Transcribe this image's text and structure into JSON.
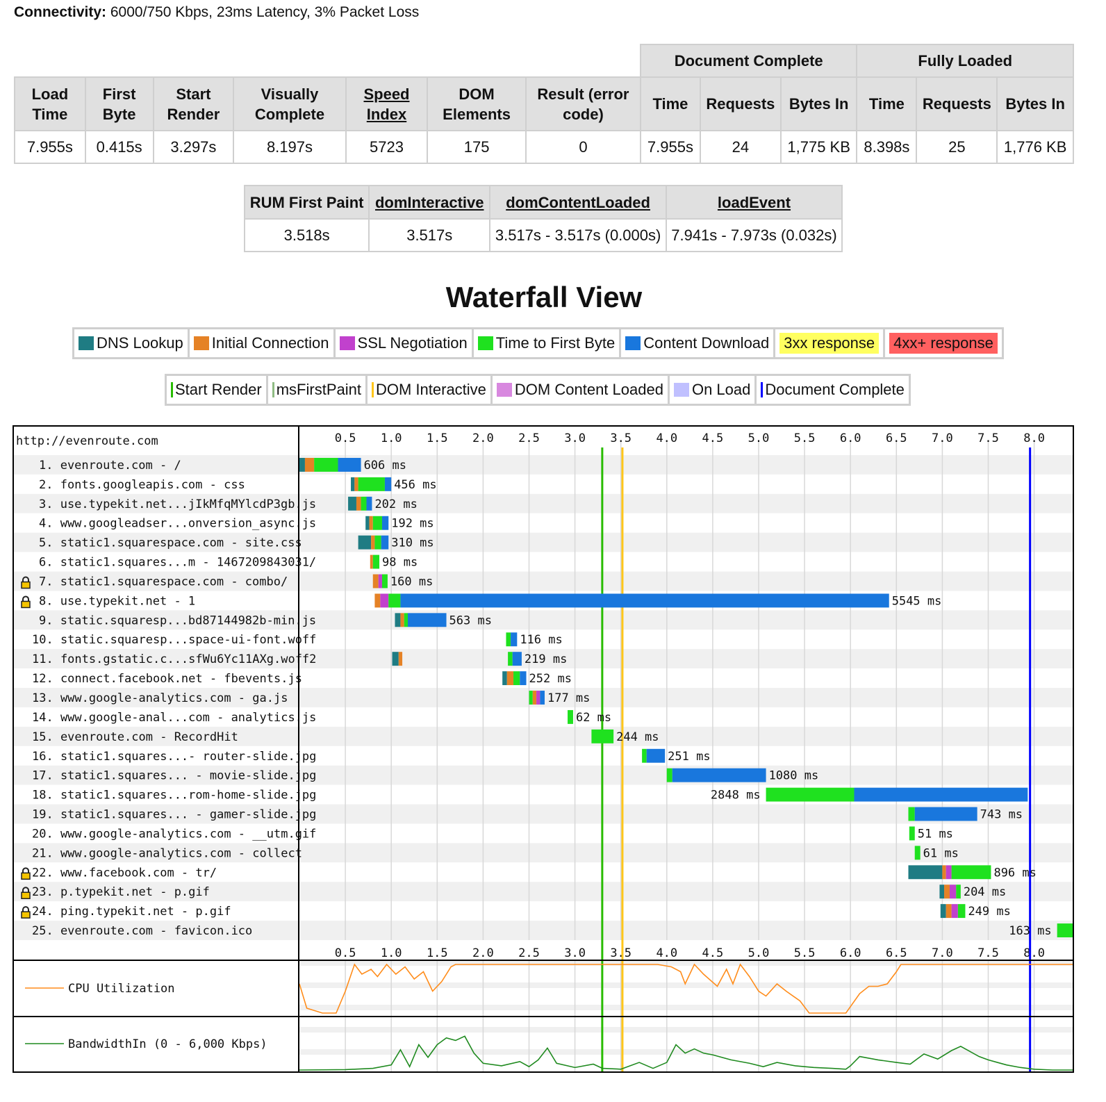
{
  "connectivity": {
    "label": "Connectivity:",
    "value": "6000/750 Kbps, 23ms Latency, 3% Packet Loss"
  },
  "results": {
    "groups": {
      "doc": "Document Complete",
      "full": "Fully Loaded"
    },
    "headers": {
      "load": "Load Time",
      "first_byte": "First Byte",
      "start_render": "Start Render",
      "visually_complete": "Visually Complete",
      "speed_index": "Speed Index",
      "dom_elements": "DOM Elements",
      "result": "Result (error code)",
      "time": "Time",
      "requests": "Requests",
      "bytes_in": "Bytes In"
    },
    "values": {
      "load": "7.955s",
      "first_byte": "0.415s",
      "start_render": "3.297s",
      "visually_complete": "8.197s",
      "speed_index": "5723",
      "dom_elements": "175",
      "result": "0",
      "doc_time": "7.955s",
      "doc_requests": "24",
      "doc_bytes": "1,775 KB",
      "full_time": "8.398s",
      "full_requests": "25",
      "full_bytes": "1,776 KB"
    }
  },
  "rum": {
    "headers": {
      "first_paint": "RUM First Paint",
      "dom_interactive": "domInteractive",
      "dom_content_loaded": "domContentLoaded",
      "load_event": "loadEvent"
    },
    "values": {
      "first_paint": "3.518s",
      "dom_interactive": "3.517s",
      "dom_content_loaded": "3.517s - 3.517s (0.000s)",
      "load_event": "7.941s - 7.973s (0.032s)"
    }
  },
  "waterfall_title": "Waterfall View",
  "legend": {
    "phases": [
      {
        "label": "DNS Lookup",
        "color": "#1f7c83"
      },
      {
        "label": "Initial Connection",
        "color": "#e58226"
      },
      {
        "label": "SSL Negotiation",
        "color": "#c141cd"
      },
      {
        "label": "Time to First Byte",
        "color": "#1fe11f"
      },
      {
        "label": "Content Download",
        "color": "#1977dd"
      }
    ],
    "responses": [
      {
        "label": "3xx response",
        "color": "#ffff60"
      },
      {
        "label": "4xx+ response",
        "color": "#ff6060"
      }
    ],
    "markers": [
      {
        "label": "Start Render",
        "color": "#28bc00",
        "kind": "line"
      },
      {
        "label": "msFirstPaint",
        "color": "#8fbc83",
        "kind": "line"
      },
      {
        "label": "DOM Interactive",
        "color": "#ffc61a",
        "kind": "line"
      },
      {
        "label": "DOM Content Loaded",
        "color": "#d888df",
        "kind": "box"
      },
      {
        "label": "On Load",
        "color": "#c0c0ff",
        "kind": "box"
      },
      {
        "label": "Document Complete",
        "color": "#0000ff",
        "kind": "line"
      }
    ]
  },
  "chart_data": {
    "type": "waterfall",
    "site": "http://evenroute.com",
    "xlim": [
      0,
      8.45
    ],
    "ticks": [
      0.5,
      1.0,
      1.5,
      2.0,
      2.5,
      3.0,
      3.5,
      4.0,
      4.5,
      5.0,
      5.5,
      6.0,
      6.5,
      7.0,
      7.5,
      8.0
    ],
    "markers": {
      "start_render": 3.297,
      "dom_interactive": 3.517,
      "document_complete": 7.955
    },
    "requests": [
      {
        "label": "1. evenroute.com - /",
        "secure": false,
        "ms": "606 ms",
        "segs": [
          [
            0,
            0.06,
            "dns"
          ],
          [
            0.06,
            0.16,
            "conn"
          ],
          [
            0.16,
            0.42,
            "ttfb"
          ],
          [
            0.42,
            0.67,
            "dl"
          ]
        ]
      },
      {
        "label": "2. fonts.googleapis.com - css",
        "secure": false,
        "ms": "456 ms",
        "segs": [
          [
            0.56,
            0.6,
            "dns"
          ],
          [
            0.6,
            0.64,
            "conn"
          ],
          [
            0.64,
            0.93,
            "ttfb"
          ],
          [
            0.93,
            1.0,
            "dl"
          ]
        ]
      },
      {
        "label": "3. use.typekit.net...jIkMfqMYlcdP3gb.js",
        "secure": false,
        "ms": "202 ms",
        "segs": [
          [
            0.53,
            0.62,
            "dns"
          ],
          [
            0.62,
            0.67,
            "conn"
          ],
          [
            0.67,
            0.73,
            "ttfb"
          ],
          [
            0.73,
            0.79,
            "dl"
          ]
        ]
      },
      {
        "label": "4. www.googleadser...onversion_async.js",
        "secure": false,
        "ms": "192 ms",
        "segs": [
          [
            0.72,
            0.76,
            "dns"
          ],
          [
            0.76,
            0.8,
            "conn"
          ],
          [
            0.8,
            0.9,
            "ttfb"
          ],
          [
            0.9,
            0.97,
            "dl"
          ]
        ]
      },
      {
        "label": "5. static1.squarespace.com - site.css",
        "secure": false,
        "ms": "310 ms",
        "segs": [
          [
            0.64,
            0.78,
            "dns"
          ],
          [
            0.78,
            0.82,
            "conn"
          ],
          [
            0.82,
            0.89,
            "ttfb"
          ],
          [
            0.89,
            0.97,
            "dl"
          ]
        ]
      },
      {
        "label": "6. static1.squares...m - 1467209843031/",
        "secure": false,
        "ms": "98 ms",
        "segs": [
          [
            0.77,
            0.8,
            "conn"
          ],
          [
            0.8,
            0.87,
            "ttfb"
          ]
        ]
      },
      {
        "label": "7. static1.squarespace.com - combo/",
        "secure": true,
        "ms": "160 ms",
        "segs": [
          [
            0.8,
            0.86,
            "conn"
          ],
          [
            0.86,
            0.9,
            "ssl"
          ],
          [
            0.9,
            0.96,
            "ttfb"
          ]
        ]
      },
      {
        "label": "8. use.typekit.net - 1",
        "secure": true,
        "ms": "5545 ms",
        "segs": [
          [
            0.82,
            0.88,
            "conn"
          ],
          [
            0.88,
            0.97,
            "ssl"
          ],
          [
            0.97,
            1.1,
            "ttfb"
          ],
          [
            1.1,
            6.42,
            "dl"
          ]
        ]
      },
      {
        "label": "9. static.squaresp...bd87144982b-min.js",
        "secure": false,
        "ms": "563 ms",
        "segs": [
          [
            1.04,
            1.1,
            "dns"
          ],
          [
            1.1,
            1.14,
            "conn"
          ],
          [
            1.14,
            1.18,
            "ttfb"
          ],
          [
            1.18,
            1.6,
            "dl"
          ]
        ]
      },
      {
        "label": "10. static.squaresp...space-ui-font.woff",
        "secure": false,
        "ms": "116 ms",
        "segs": [
          [
            2.25,
            2.3,
            "ttfb"
          ],
          [
            2.3,
            2.37,
            "dl"
          ]
        ]
      },
      {
        "label": "11. fonts.gstatic.c...sfWu6Yc11AXg.woff2",
        "secure": false,
        "ms": "219 ms",
        "segs": [
          [
            1.01,
            1.08,
            "dns"
          ],
          [
            1.08,
            1.12,
            "conn"
          ],
          [
            2.27,
            2.32,
            "ttfb"
          ],
          [
            2.32,
            2.42,
            "dl"
          ]
        ]
      },
      {
        "label": "12. connect.facebook.net - fbevents.js",
        "secure": false,
        "ms": "252 ms",
        "segs": [
          [
            2.21,
            2.26,
            "dns"
          ],
          [
            2.26,
            2.33,
            "conn"
          ],
          [
            2.33,
            2.4,
            "ttfb"
          ],
          [
            2.4,
            2.47,
            "dl"
          ]
        ]
      },
      {
        "label": "13. www.google-analytics.com - ga.js",
        "secure": false,
        "ms": "177 ms",
        "segs": [
          [
            2.5,
            2.54,
            "ttfb"
          ],
          [
            2.54,
            2.58,
            "conn"
          ],
          [
            2.58,
            2.62,
            "ssl"
          ],
          [
            2.62,
            2.67,
            "dl"
          ]
        ]
      },
      {
        "label": "14. www.google-anal...com - analytics.js",
        "secure": false,
        "ms": "62 ms",
        "segs": [
          [
            2.92,
            2.98,
            "ttfb"
          ]
        ]
      },
      {
        "label": "15. evenroute.com - RecordHit",
        "secure": false,
        "ms": "244 ms",
        "segs": [
          [
            3.18,
            3.42,
            "ttfb"
          ]
        ]
      },
      {
        "label": "16. static1.squares...- router-slide.jpg",
        "secure": false,
        "ms": "251 ms",
        "segs": [
          [
            3.73,
            3.78,
            "ttfb"
          ],
          [
            3.78,
            3.98,
            "dl"
          ]
        ]
      },
      {
        "label": "17. static1.squares... - movie-slide.jpg",
        "secure": false,
        "ms": "1080 ms",
        "segs": [
          [
            4.0,
            4.06,
            "ttfb"
          ],
          [
            4.06,
            5.08,
            "dl"
          ]
        ]
      },
      {
        "label": "18. static1.squares...rom-home-slide.jpg",
        "secure": false,
        "ms": "2848 ms",
        "segs": [
          [
            5.08,
            6.04,
            "ttfb"
          ],
          [
            6.04,
            7.93,
            "dl"
          ]
        ]
      },
      {
        "label": "19. static1.squares... - gamer-slide.jpg",
        "secure": false,
        "ms": "743 ms",
        "segs": [
          [
            6.63,
            6.7,
            "ttfb"
          ],
          [
            6.7,
            7.38,
            "dl"
          ]
        ]
      },
      {
        "label": "20. www.google-analytics.com - __utm.gif",
        "secure": false,
        "ms": "51 ms",
        "segs": [
          [
            6.64,
            6.7,
            "ttfb"
          ]
        ]
      },
      {
        "label": "21. www.google-analytics.com - collect",
        "secure": false,
        "ms": "61 ms",
        "segs": [
          [
            6.7,
            6.76,
            "ttfb"
          ]
        ]
      },
      {
        "label": "22. www.facebook.com - tr/",
        "secure": true,
        "ms": "896 ms",
        "segs": [
          [
            6.63,
            7.0,
            "dns"
          ],
          [
            7.0,
            7.04,
            "conn"
          ],
          [
            7.04,
            7.1,
            "ssl"
          ],
          [
            7.1,
            7.53,
            "ttfb"
          ]
        ]
      },
      {
        "label": "23. p.typekit.net - p.gif",
        "secure": true,
        "ms": "204 ms",
        "segs": [
          [
            6.97,
            7.02,
            "dns"
          ],
          [
            7.02,
            7.08,
            "conn"
          ],
          [
            7.08,
            7.15,
            "ssl"
          ],
          [
            7.15,
            7.2,
            "ttfb"
          ]
        ]
      },
      {
        "label": "24. ping.typekit.net - p.gif",
        "secure": true,
        "ms": "249 ms",
        "segs": [
          [
            6.98,
            7.04,
            "dns"
          ],
          [
            7.04,
            7.1,
            "conn"
          ],
          [
            7.1,
            7.17,
            "ssl"
          ],
          [
            7.17,
            7.25,
            "ttfb"
          ]
        ]
      },
      {
        "label": "25. evenroute.com - favicon.ico",
        "secure": false,
        "ms": "163 ms",
        "segs": [
          [
            8.25,
            8.45,
            "ttfb"
          ]
        ]
      }
    ],
    "cpu": {
      "label": "CPU Utilization",
      "unit": "percent",
      "points": [
        [
          0,
          60
        ],
        [
          0.08,
          10
        ],
        [
          0.25,
          0
        ],
        [
          0.4,
          0
        ],
        [
          0.5,
          45
        ],
        [
          0.6,
          100
        ],
        [
          0.68,
          80
        ],
        [
          0.78,
          90
        ],
        [
          0.85,
          75
        ],
        [
          0.95,
          100
        ],
        [
          1.05,
          80
        ],
        [
          1.15,
          95
        ],
        [
          1.25,
          70
        ],
        [
          1.35,
          85
        ],
        [
          1.45,
          45
        ],
        [
          1.55,
          65
        ],
        [
          1.65,
          95
        ],
        [
          1.7,
          100
        ],
        [
          3.9,
          100
        ],
        [
          4.05,
          95
        ],
        [
          4.15,
          85
        ],
        [
          4.2,
          60
        ],
        [
          4.3,
          100
        ],
        [
          4.4,
          80
        ],
        [
          4.55,
          55
        ],
        [
          4.65,
          90
        ],
        [
          4.72,
          60
        ],
        [
          4.8,
          100
        ],
        [
          4.9,
          75
        ],
        [
          5.0,
          45
        ],
        [
          5.08,
          35
        ],
        [
          5.2,
          60
        ],
        [
          5.3,
          45
        ],
        [
          5.45,
          25
        ],
        [
          5.55,
          0
        ],
        [
          5.95,
          0
        ],
        [
          6.1,
          40
        ],
        [
          6.2,
          55
        ],
        [
          6.3,
          55
        ],
        [
          6.4,
          60
        ],
        [
          6.5,
          85
        ],
        [
          6.55,
          100
        ],
        [
          8.45,
          100
        ]
      ]
    },
    "bandwidth": {
      "label": "BandwidthIn (0 - 6,000 Kbps)",
      "ylim": [
        0,
        6000
      ],
      "points": [
        [
          0,
          0
        ],
        [
          0.5,
          50
        ],
        [
          0.8,
          200
        ],
        [
          1.0,
          600
        ],
        [
          1.1,
          2400
        ],
        [
          1.2,
          400
        ],
        [
          1.3,
          3000
        ],
        [
          1.4,
          1500
        ],
        [
          1.5,
          3000
        ],
        [
          1.6,
          3800
        ],
        [
          1.7,
          3500
        ],
        [
          1.8,
          4000
        ],
        [
          1.9,
          2000
        ],
        [
          2.0,
          800
        ],
        [
          2.2,
          500
        ],
        [
          2.4,
          1000
        ],
        [
          2.5,
          400
        ],
        [
          2.6,
          1200
        ],
        [
          2.7,
          2600
        ],
        [
          2.8,
          800
        ],
        [
          3.0,
          300
        ],
        [
          3.2,
          700
        ],
        [
          3.3,
          200
        ],
        [
          3.5,
          100
        ],
        [
          3.7,
          900
        ],
        [
          3.85,
          200
        ],
        [
          4.0,
          900
        ],
        [
          4.1,
          3000
        ],
        [
          4.2,
          2000
        ],
        [
          4.3,
          2500
        ],
        [
          4.4,
          2000
        ],
        [
          4.5,
          1800
        ],
        [
          4.7,
          1200
        ],
        [
          4.9,
          800
        ],
        [
          5.05,
          400
        ],
        [
          5.2,
          900
        ],
        [
          5.4,
          500
        ],
        [
          5.6,
          300
        ],
        [
          5.8,
          200
        ],
        [
          5.95,
          100
        ],
        [
          6.0,
          500
        ],
        [
          6.1,
          1600
        ],
        [
          6.3,
          1200
        ],
        [
          6.5,
          900
        ],
        [
          6.65,
          700
        ],
        [
          6.8,
          1900
        ],
        [
          6.95,
          1300
        ],
        [
          7.1,
          2300
        ],
        [
          7.2,
          2800
        ],
        [
          7.3,
          2200
        ],
        [
          7.4,
          1600
        ],
        [
          7.5,
          1200
        ],
        [
          7.6,
          900
        ],
        [
          7.7,
          600
        ],
        [
          7.85,
          300
        ],
        [
          8.0,
          100
        ],
        [
          8.2,
          0
        ],
        [
          8.45,
          0
        ]
      ]
    }
  }
}
